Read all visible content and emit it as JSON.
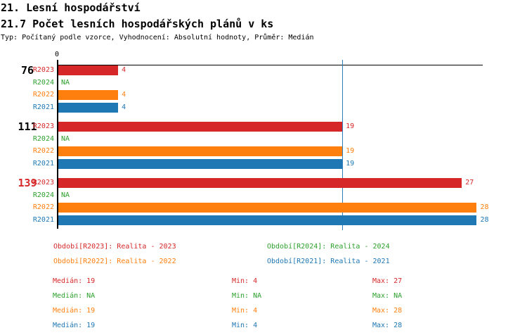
{
  "header": {
    "title": "21. Lesní hospodářství",
    "subtitle": "21.7 Počet lesních hospodářských plánů v ks",
    "meta": "Typ: Počítaný podle vzorce, Vyhodnocení: Absolutní hodnoty, Průměr: Medián"
  },
  "colors": {
    "red": "#d62728",
    "green": "#2ca02c",
    "orange": "#ff7f0e",
    "blue": "#1f77b4",
    "black": "#000000",
    "axis": "#000000",
    "median_line": "#2e7ebc",
    "background": "#ffffff"
  },
  "chart_data": {
    "type": "bar",
    "orientation": "horizontal",
    "title": "21.7 Počet lesních hospodářských plánů v ks",
    "xlabel": "",
    "ylabel": "",
    "x_zero_label": "0",
    "xlim": [
      0,
      28.4
    ],
    "grid": false,
    "median_line_value": 19,
    "legend_position": "bottom",
    "series": [
      {
        "name": "R2023",
        "color": "red"
      },
      {
        "name": "R2024",
        "color": "green"
      },
      {
        "name": "R2022",
        "color": "orange"
      },
      {
        "name": "R2021",
        "color": "blue"
      }
    ],
    "groups": [
      {
        "label": "76",
        "label_color": "black",
        "values": [
          4,
          null,
          4,
          4
        ],
        "value_labels": [
          "4",
          "NA",
          "4",
          "4"
        ]
      },
      {
        "label": "111",
        "label_color": "black",
        "values": [
          19,
          null,
          19,
          19
        ],
        "value_labels": [
          "19",
          "NA",
          "19",
          "19"
        ]
      },
      {
        "label": "139",
        "label_color": "red",
        "values": [
          27,
          null,
          28,
          28
        ],
        "value_labels": [
          "27",
          "NA",
          "28",
          "28"
        ]
      }
    ]
  },
  "legend": {
    "items": [
      {
        "text": "Období[R2023]: Realita - 2023",
        "color": "red"
      },
      {
        "text": "Období[R2024]: Realita - 2024",
        "color": "green"
      },
      {
        "text": "Období[R2022]: Realita - 2022",
        "color": "orange"
      },
      {
        "text": "Období[R2021]: Realita - 2021",
        "color": "blue"
      }
    ]
  },
  "stats": {
    "rows": [
      {
        "color": "red",
        "median": "Medián: 19",
        "min": "Min: 4",
        "max": "Max: 27"
      },
      {
        "color": "green",
        "median": "Medián: NA",
        "min": "Min: NA",
        "max": "Max: NA"
      },
      {
        "color": "orange",
        "median": "Medián: 19",
        "min": "Min: 4",
        "max": "Max: 28"
      },
      {
        "color": "blue",
        "median": "Medián: 19",
        "min": "Min: 4",
        "max": "Max: 28"
      }
    ]
  }
}
